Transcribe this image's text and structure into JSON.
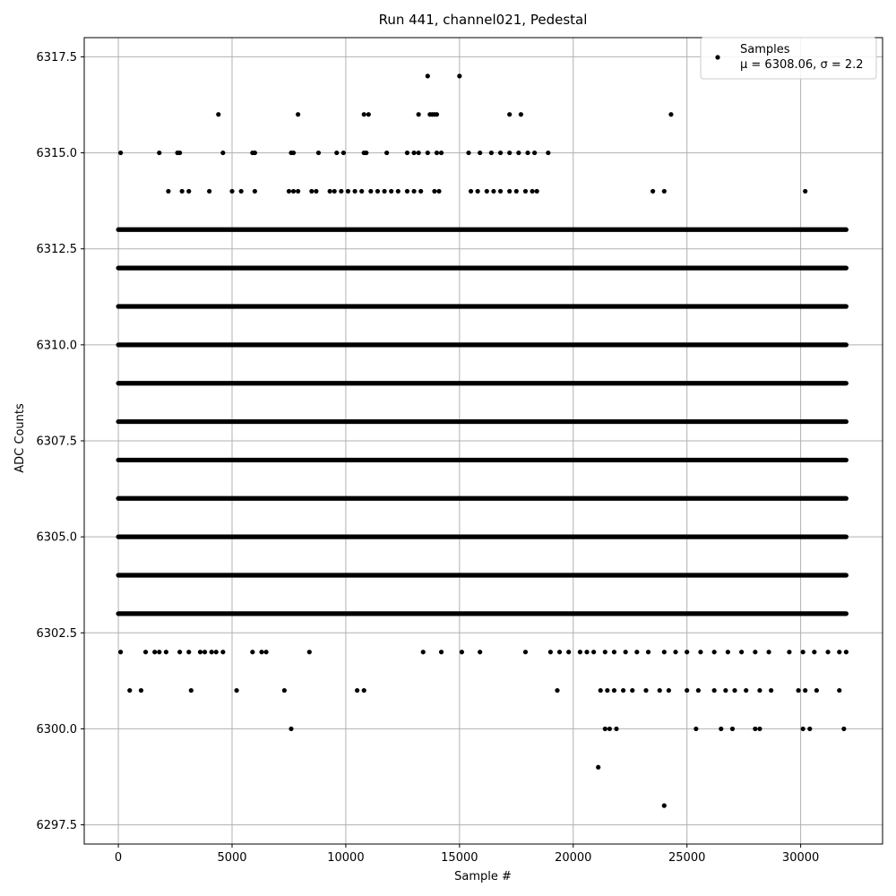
{
  "chart_data": {
    "type": "scatter",
    "title": "Run 441, channel021, Pedestal",
    "xlabel": "Sample #",
    "ylabel": "ADC Counts",
    "xlim": [
      -1500,
      33600
    ],
    "ylim": [
      6297.0,
      6318.0
    ],
    "xticks": [
      0,
      5000,
      10000,
      15000,
      20000,
      25000,
      30000
    ],
    "xtick_labels": [
      "0",
      "5000",
      "10000",
      "15000",
      "20000",
      "25000",
      "30000"
    ],
    "yticks": [
      6297.5,
      6300.0,
      6302.5,
      6305.0,
      6307.5,
      6310.0,
      6312.5,
      6315.0,
      6317.5
    ],
    "ytick_labels": [
      "6297.5",
      "6300.0",
      "6302.5",
      "6305.0",
      "6307.5",
      "6310.0",
      "6312.5",
      "6315.0",
      "6317.5"
    ],
    "grid": true,
    "legend_position": "top-right",
    "marker_color": "#000000",
    "series": [
      {
        "name": "Samples",
        "stats_label": "μ = 6308.06, σ = 2.2",
        "dense_levels": [
          {
            "y": 6303,
            "x_range": [
              0,
              32000
            ]
          },
          {
            "y": 6304,
            "x_range": [
              0,
              32000
            ]
          },
          {
            "y": 6305,
            "x_range": [
              0,
              32000
            ]
          },
          {
            "y": 6306,
            "x_range": [
              0,
              32000
            ]
          },
          {
            "y": 6307,
            "x_range": [
              0,
              32000
            ]
          },
          {
            "y": 6308,
            "x_range": [
              0,
              32000
            ]
          },
          {
            "y": 6309,
            "x_range": [
              0,
              32000
            ]
          },
          {
            "y": 6310,
            "x_range": [
              0,
              32000
            ]
          },
          {
            "y": 6311,
            "x_range": [
              0,
              32000
            ]
          },
          {
            "y": 6312,
            "x_range": [
              0,
              32000
            ]
          },
          {
            "y": 6313,
            "x_range": [
              0,
              32000
            ]
          }
        ],
        "points": [
          [
            100,
            6302
          ],
          [
            1200,
            6302
          ],
          [
            1600,
            6302
          ],
          [
            1800,
            6302
          ],
          [
            2100,
            6302
          ],
          [
            2700,
            6302
          ],
          [
            3100,
            6302
          ],
          [
            3600,
            6302
          ],
          [
            3800,
            6302
          ],
          [
            4100,
            6302
          ],
          [
            4300,
            6302
          ],
          [
            4600,
            6302
          ],
          [
            5900,
            6302
          ],
          [
            6300,
            6302
          ],
          [
            6500,
            6302
          ],
          [
            8400,
            6302
          ],
          [
            13400,
            6302
          ],
          [
            14200,
            6302
          ],
          [
            15100,
            6302
          ],
          [
            15900,
            6302
          ],
          [
            17900,
            6302
          ],
          [
            19000,
            6302
          ],
          [
            19400,
            6302
          ],
          [
            19800,
            6302
          ],
          [
            20300,
            6302
          ],
          [
            20600,
            6302
          ],
          [
            20900,
            6302
          ],
          [
            21400,
            6302
          ],
          [
            21800,
            6302
          ],
          [
            22300,
            6302
          ],
          [
            22800,
            6302
          ],
          [
            23300,
            6302
          ],
          [
            24000,
            6302
          ],
          [
            24500,
            6302
          ],
          [
            25000,
            6302
          ],
          [
            25600,
            6302
          ],
          [
            26200,
            6302
          ],
          [
            26800,
            6302
          ],
          [
            27400,
            6302
          ],
          [
            28000,
            6302
          ],
          [
            28600,
            6302
          ],
          [
            29500,
            6302
          ],
          [
            30100,
            6302
          ],
          [
            30600,
            6302
          ],
          [
            31200,
            6302
          ],
          [
            31700,
            6302
          ],
          [
            32000,
            6302
          ],
          [
            500,
            6301
          ],
          [
            1000,
            6301
          ],
          [
            3200,
            6301
          ],
          [
            5200,
            6301
          ],
          [
            7300,
            6301
          ],
          [
            10500,
            6301
          ],
          [
            10800,
            6301
          ],
          [
            19300,
            6301
          ],
          [
            21200,
            6301
          ],
          [
            21500,
            6301
          ],
          [
            21800,
            6301
          ],
          [
            22200,
            6301
          ],
          [
            22600,
            6301
          ],
          [
            23200,
            6301
          ],
          [
            23800,
            6301
          ],
          [
            24200,
            6301
          ],
          [
            25000,
            6301
          ],
          [
            25500,
            6301
          ],
          [
            26200,
            6301
          ],
          [
            26700,
            6301
          ],
          [
            27100,
            6301
          ],
          [
            27600,
            6301
          ],
          [
            28200,
            6301
          ],
          [
            28700,
            6301
          ],
          [
            29900,
            6301
          ],
          [
            30200,
            6301
          ],
          [
            30700,
            6301
          ],
          [
            31700,
            6301
          ],
          [
            7600,
            6300
          ],
          [
            21400,
            6300
          ],
          [
            21600,
            6300
          ],
          [
            21900,
            6300
          ],
          [
            25400,
            6300
          ],
          [
            26500,
            6300
          ],
          [
            27000,
            6300
          ],
          [
            28000,
            6300
          ],
          [
            28200,
            6300
          ],
          [
            30100,
            6300
          ],
          [
            30400,
            6300
          ],
          [
            31900,
            6300
          ],
          [
            21100,
            6299
          ],
          [
            24000,
            6298
          ],
          [
            2200,
            6314
          ],
          [
            2800,
            6314
          ],
          [
            3100,
            6314
          ],
          [
            4000,
            6314
          ],
          [
            5000,
            6314
          ],
          [
            5400,
            6314
          ],
          [
            6000,
            6314
          ],
          [
            7500,
            6314
          ],
          [
            7700,
            6314
          ],
          [
            7900,
            6314
          ],
          [
            8500,
            6314
          ],
          [
            8700,
            6314
          ],
          [
            9300,
            6314
          ],
          [
            9500,
            6314
          ],
          [
            9800,
            6314
          ],
          [
            10100,
            6314
          ],
          [
            10400,
            6314
          ],
          [
            10700,
            6314
          ],
          [
            11100,
            6314
          ],
          [
            11400,
            6314
          ],
          [
            11700,
            6314
          ],
          [
            12000,
            6314
          ],
          [
            12300,
            6314
          ],
          [
            12700,
            6314
          ],
          [
            13000,
            6314
          ],
          [
            13300,
            6314
          ],
          [
            13900,
            6314
          ],
          [
            14100,
            6314
          ],
          [
            15500,
            6314
          ],
          [
            15800,
            6314
          ],
          [
            16200,
            6314
          ],
          [
            16500,
            6314
          ],
          [
            16800,
            6314
          ],
          [
            17200,
            6314
          ],
          [
            17500,
            6314
          ],
          [
            17900,
            6314
          ],
          [
            18200,
            6314
          ],
          [
            18400,
            6314
          ],
          [
            23500,
            6314
          ],
          [
            24000,
            6314
          ],
          [
            30200,
            6314
          ],
          [
            100,
            6315
          ],
          [
            1800,
            6315
          ],
          [
            2600,
            6315
          ],
          [
            2700,
            6315
          ],
          [
            4600,
            6315
          ],
          [
            5900,
            6315
          ],
          [
            6000,
            6315
          ],
          [
            7600,
            6315
          ],
          [
            7700,
            6315
          ],
          [
            8800,
            6315
          ],
          [
            9600,
            6315
          ],
          [
            9900,
            6315
          ],
          [
            10800,
            6315
          ],
          [
            10900,
            6315
          ],
          [
            11800,
            6315
          ],
          [
            12700,
            6315
          ],
          [
            13000,
            6315
          ],
          [
            13200,
            6315
          ],
          [
            13600,
            6315
          ],
          [
            14000,
            6315
          ],
          [
            14200,
            6315
          ],
          [
            15400,
            6315
          ],
          [
            15900,
            6315
          ],
          [
            16400,
            6315
          ],
          [
            16800,
            6315
          ],
          [
            17200,
            6315
          ],
          [
            17600,
            6315
          ],
          [
            18000,
            6315
          ],
          [
            18300,
            6315
          ],
          [
            18900,
            6315
          ],
          [
            4400,
            6316
          ],
          [
            7900,
            6316
          ],
          [
            10800,
            6316
          ],
          [
            11000,
            6316
          ],
          [
            13200,
            6316
          ],
          [
            13700,
            6316
          ],
          [
            13800,
            6316
          ],
          [
            13900,
            6316
          ],
          [
            14000,
            6316
          ],
          [
            17200,
            6316
          ],
          [
            17700,
            6316
          ],
          [
            24300,
            6316
          ],
          [
            13600,
            6317
          ],
          [
            15000,
            6317
          ]
        ]
      }
    ]
  }
}
